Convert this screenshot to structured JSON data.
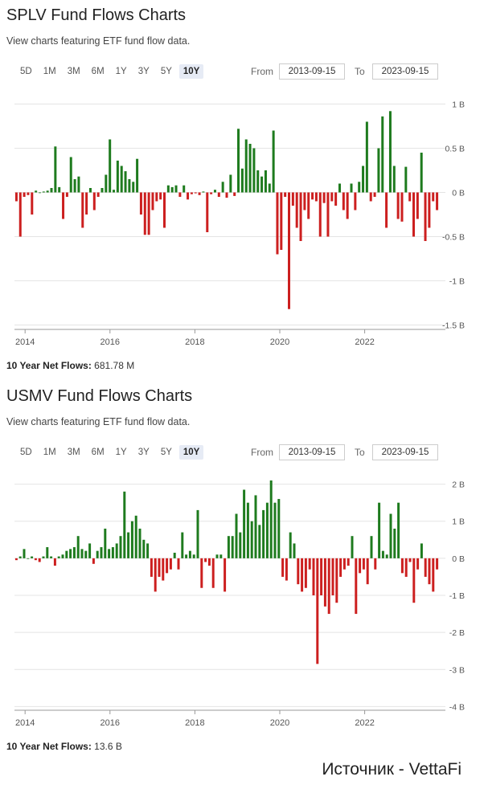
{
  "source_label": "Источник - VettaFi",
  "charts": [
    {
      "title": "SPLV Fund Flows Charts",
      "subtitle": "View charts featuring ETF fund flow data.",
      "ranges": [
        "5D",
        "1M",
        "3M",
        "6M",
        "1Y",
        "3Y",
        "5Y",
        "10Y"
      ],
      "active_range": "10Y",
      "from_label": "From",
      "from_value": "2013-09-15",
      "to_label": "To",
      "to_value": "2023-09-15",
      "net_label": "10 Year Net Flows:",
      "net_value": "681.78 M",
      "colors": {
        "positive": "#1e7b1e",
        "negative": "#cc1f1f"
      },
      "chart_data": {
        "type": "bar",
        "x_start": 2013.75,
        "x_end": 2023.75,
        "x_ticks": [
          2014,
          2016,
          2018,
          2020,
          2022
        ],
        "y_ticks": [
          1,
          0.5,
          0,
          -0.5,
          -1,
          -1.5
        ],
        "y_tick_labels": [
          "1 B",
          "0.5 B",
          "0 B",
          "-0.5 B",
          "-1 B",
          "-1.5 B"
        ],
        "ylim": [
          -1.55,
          1.05
        ],
        "unit": "B",
        "values": [
          -0.1,
          -0.5,
          -0.05,
          -0.03,
          -0.25,
          0.02,
          0,
          0.01,
          0.02,
          0.05,
          0.52,
          0.06,
          -0.3,
          -0.05,
          0.4,
          0.15,
          0.18,
          -0.4,
          -0.25,
          0.05,
          -0.2,
          -0.05,
          0.05,
          0.2,
          0.6,
          0.03,
          0.36,
          0.3,
          0.24,
          0.15,
          0.12,
          0.38,
          -0.25,
          -0.48,
          -0.48,
          -0.2,
          -0.1,
          -0.08,
          -0.4,
          0.08,
          0.06,
          0.08,
          -0.05,
          0.08,
          -0.08,
          -0.02,
          -0.01,
          -0.03,
          0.01,
          -0.45,
          -0.02,
          0.03,
          -0.05,
          0.12,
          -0.06,
          0.2,
          -0.04,
          0.72,
          0.27,
          0.6,
          0.55,
          0.5,
          0.25,
          0.18,
          0.25,
          0.1,
          0.7,
          -0.7,
          -0.65,
          -0.05,
          -1.32,
          -0.15,
          -0.4,
          -0.55,
          -0.2,
          -0.3,
          -0.08,
          -0.1,
          -0.5,
          -0.12,
          -0.5,
          -0.1,
          -0.15,
          0.1,
          -0.2,
          -0.3,
          0.1,
          -0.2,
          0.12,
          0.3,
          0.8,
          -0.1,
          -0.05,
          0.5,
          0.86,
          -0.4,
          0.92,
          0.3,
          -0.3,
          -0.33,
          0.29,
          -0.1,
          -0.5,
          -0.3,
          0.45,
          -0.55,
          -0.4,
          -0.1,
          -0.2
        ]
      }
    },
    {
      "title": "USMV Fund Flows Charts",
      "subtitle": "View charts featuring ETF fund flow data.",
      "ranges": [
        "5D",
        "1M",
        "3M",
        "6M",
        "1Y",
        "3Y",
        "5Y",
        "10Y"
      ],
      "active_range": "10Y",
      "from_label": "From",
      "from_value": "2013-09-15",
      "to_label": "To",
      "to_value": "2023-09-15",
      "net_label": "10 Year Net Flows:",
      "net_value": "13.6 B",
      "colors": {
        "positive": "#1e7b1e",
        "negative": "#cc1f1f"
      },
      "chart_data": {
        "type": "bar",
        "x_start": 2013.75,
        "x_end": 2023.75,
        "x_ticks": [
          2014,
          2016,
          2018,
          2020,
          2022
        ],
        "y_ticks": [
          2,
          1,
          0,
          -1,
          -2,
          -3,
          -4
        ],
        "y_tick_labels": [
          "2 B",
          "1 B",
          "0 B",
          "-1 B",
          "-2 B",
          "-3 B",
          "-4 B"
        ],
        "ylim": [
          -4.1,
          2.1
        ],
        "unit": "B",
        "values": [
          -0.05,
          0.05,
          0.25,
          0,
          0.05,
          -0.05,
          -0.1,
          0.05,
          0.3,
          0.05,
          -0.2,
          0.05,
          0.1,
          0.2,
          0.25,
          0.3,
          0.6,
          0.25,
          0.2,
          0.4,
          -0.15,
          0.2,
          0.3,
          0.8,
          0.25,
          0.3,
          0.4,
          0.6,
          1.8,
          0.7,
          1.0,
          1.15,
          0.8,
          0.5,
          0.4,
          -0.5,
          -0.9,
          -0.5,
          -0.6,
          -0.4,
          -0.3,
          0.15,
          -0.3,
          0.7,
          0.1,
          0.2,
          0.1,
          1.3,
          -0.8,
          -0.1,
          -0.2,
          -0.8,
          0.1,
          0.1,
          -0.9,
          0.6,
          0.6,
          1.2,
          0.7,
          1.85,
          1.5,
          1.0,
          1.7,
          0.9,
          1.3,
          1.5,
          2.1,
          1.5,
          1.6,
          -0.5,
          -0.6,
          0.7,
          0.4,
          -0.7,
          -0.9,
          -0.8,
          -0.3,
          -1.0,
          -2.85,
          -1.0,
          -1.3,
          -1.5,
          -1.0,
          -1.2,
          -0.5,
          -0.3,
          -0.2,
          0.6,
          -1.5,
          -0.4,
          -0.3,
          -0.7,
          0.6,
          -0.3,
          1.5,
          0.2,
          0.1,
          1.2,
          0.8,
          1.5,
          -0.4,
          -0.5,
          -0.1,
          -1.2,
          -0.3,
          0.4,
          -0.5,
          -0.7,
          -0.9,
          -0.3
        ]
      }
    }
  ]
}
